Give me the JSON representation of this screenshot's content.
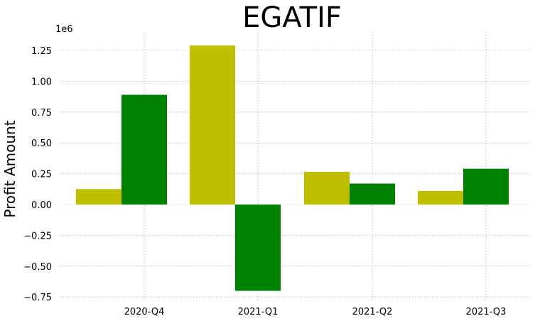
{
  "chart_data": {
    "type": "bar",
    "title": "EGATIF",
    "xlabel": "",
    "ylabel": "Profit Amount",
    "offset_text": "1e6",
    "categories": [
      "2020-Q4",
      "2021-Q1",
      "2021-Q2",
      "2021-Q3"
    ],
    "series": [
      {
        "color": "#bfbf00",
        "values": [
          125000,
          1290000,
          265000,
          110000
        ]
      },
      {
        "color": "#008000",
        "values": [
          890000,
          -700000,
          170000,
          290000
        ]
      }
    ],
    "ylim": [
      -0.78,
      1.4
    ],
    "yticks": [
      -0.75,
      -0.5,
      -0.25,
      0.0,
      0.25,
      0.5,
      0.75,
      1.0,
      1.25
    ],
    "ytick_labels": [
      "−0.75",
      "−0.50",
      "−0.25",
      "0.00",
      "0.25",
      "0.50",
      "0.75",
      "1.00",
      "1.25"
    ],
    "scale": 1000000,
    "grid": true,
    "legend": "none"
  }
}
